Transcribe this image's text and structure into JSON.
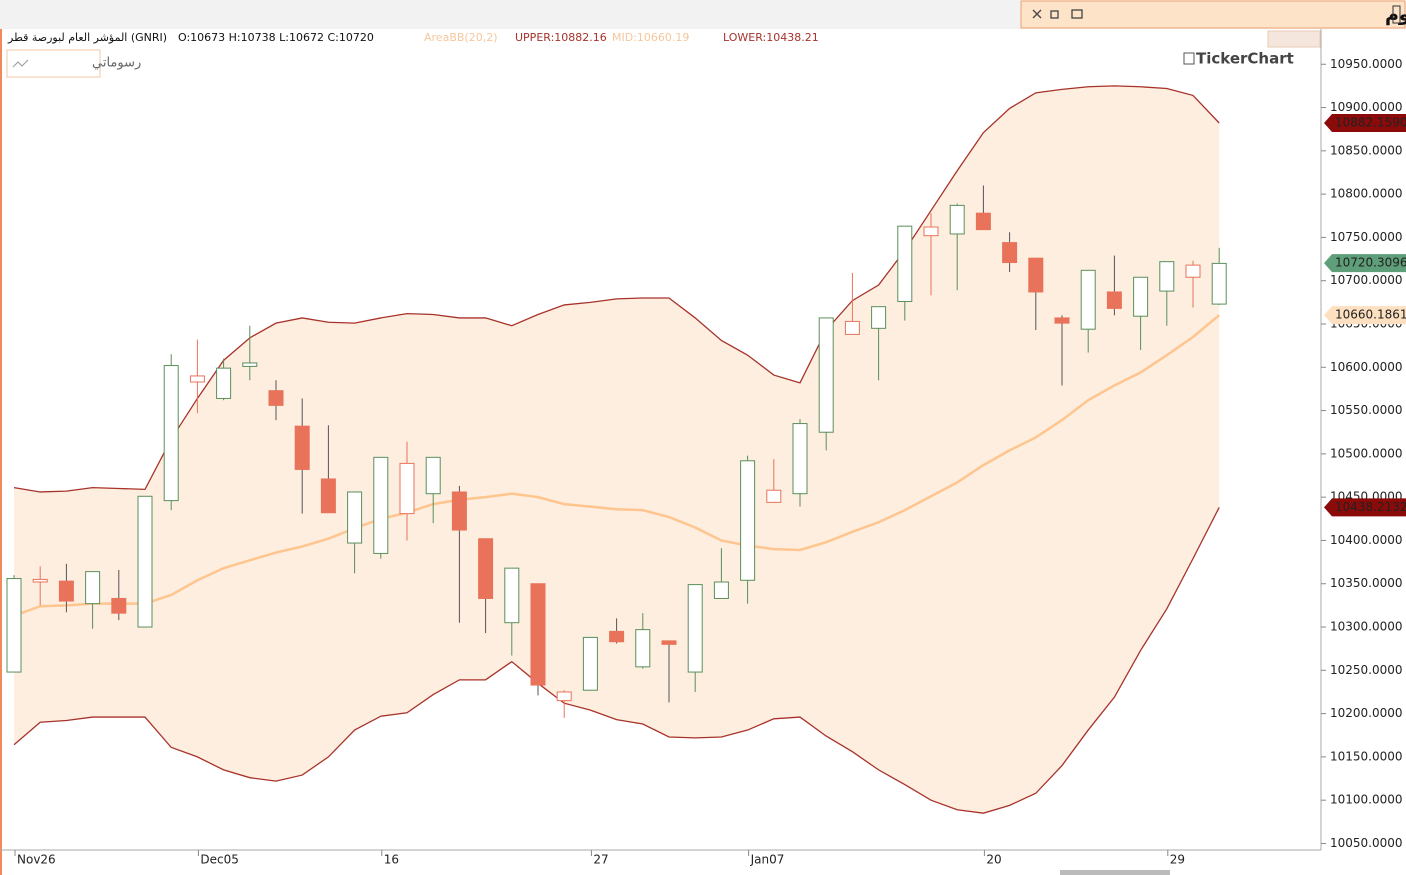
{
  "window": {
    "title": "المؤشر العام لبورصة قطر - يوم",
    "drawings_button": "رسوماتي",
    "logo": "TickerChart"
  },
  "chart_data": {
    "type": "candlestick",
    "instrument": "المؤشر العام لبورصة قطر (GNRI)",
    "ohlc_label": "O:10673 H:10738 L:10672 C:10720",
    "indicator": "AreaBB(20,2)",
    "indicator_color": "#f5c79c",
    "categories": [
      "Nov26",
      null,
      null,
      null,
      null,
      null,
      null,
      "Dec05",
      null,
      null,
      null,
      null,
      null,
      null,
      "16",
      null,
      null,
      null,
      null,
      null,
      null,
      null,
      "27",
      null,
      null,
      null,
      null,
      null,
      "Jan07",
      null,
      null,
      null,
      null,
      null,
      null,
      null,
      null,
      "20",
      null,
      null,
      null,
      null,
      null,
      null,
      "29",
      null,
      null
    ],
    "open": [
      10248,
      10352,
      10353,
      10327,
      10333,
      10300,
      10446,
      10583,
      10564,
      10601,
      10573,
      10532,
      10471,
      10397,
      10385,
      10431,
      10454,
      10456,
      10402,
      10305,
      10350,
      10215,
      10227,
      10295,
      10254,
      10284,
      10248,
      10333,
      10354,
      10444,
      10454,
      10525,
      10638,
      10645,
      10676,
      10752,
      10754,
      10778,
      10744,
      10726,
      10657,
      10644,
      10687,
      10659,
      10688,
      10704,
      10673
    ],
    "high": [
      10360,
      10370,
      10373,
      10364,
      10366,
      10451,
      10615,
      10632,
      10610,
      10648,
      10585,
      10564,
      10533,
      10456,
      10496,
      10514,
      10496,
      10463,
      10402,
      10368,
      10350,
      10227,
      10288,
      10310,
      10316,
      10284,
      10349,
      10391,
      10498,
      10494,
      10540,
      10657,
      10709,
      10670,
      10763,
      10778,
      10789,
      10810,
      10756,
      10726,
      10660,
      10712,
      10729,
      10704,
      10722,
      10723,
      10738
    ],
    "low": [
      10248,
      10325,
      10317,
      10298,
      10308,
      10300,
      10435,
      10547,
      10562,
      10585,
      10539,
      10431,
      10432,
      10362,
      10379,
      10400,
      10420,
      10305,
      10293,
      10267,
      10221,
      10195,
      10227,
      10281,
      10252,
      10213,
      10225,
      10333,
      10327,
      10444,
      10439,
      10504,
      10638,
      10585,
      10654,
      10683,
      10689,
      10759,
      10710,
      10643,
      10579,
      10617,
      10660,
      10620,
      10648,
      10669,
      10672
    ],
    "close": [
      10356,
      10355,
      10330,
      10364,
      10316,
      10451,
      10602,
      10590,
      10599,
      10605,
      10556,
      10482,
      10432,
      10456,
      10496,
      10489,
      10496,
      10412,
      10333,
      10368,
      10233,
      10225,
      10288,
      10283,
      10297,
      10280,
      10349,
      10352,
      10492,
      10458,
      10535,
      10657,
      10653,
      10670,
      10763,
      10762,
      10787,
      10759,
      10721,
      10687,
      10651,
      10712,
      10668,
      10704,
      10722,
      10718,
      10720
    ],
    "up_color": "#5b8f5b",
    "down_color": "#e8735a",
    "band_fill": "#fdeee0",
    "series": [
      {
        "name": "UPPER:10882.16",
        "color": "#a8322a",
        "values": [
          10461,
          10456,
          10457,
          10461,
          10460,
          10459,
          10517,
          10564,
          10608,
          10634,
          10651,
          10657,
          10652,
          10651,
          10657,
          10662,
          10661,
          10657,
          10657,
          10648,
          10661,
          10672,
          10675,
          10679,
          10680,
          10680,
          10657,
          10631,
          10614,
          10591,
          10582,
          10643,
          10677,
          10695,
          10735,
          10781,
          10827,
          10871,
          10899,
          10917,
          10921,
          10924,
          10925,
          10924,
          10922,
          10914,
          10882.16
        ]
      },
      {
        "name": "MID:10660.19",
        "color": "#ffc58f",
        "values": [
          10313,
          10324,
          10325,
          10327,
          10327,
          10327,
          10337,
          10354,
          10368,
          10377,
          10386,
          10393,
          10402,
          10414,
          10425,
          10432,
          10442,
          10447,
          10450,
          10454,
          10450,
          10442,
          10439,
          10436,
          10435,
          10427,
          10415,
          10400,
          10394,
          10390,
          10389,
          10398,
          10410,
          10421,
          10435,
          10451,
          10467,
          10487,
          10504,
          10519,
          10539,
          10562,
          10579,
          10594,
          10614,
          10635,
          10660.19
        ]
      },
      {
        "name": "LOWER:10438.21",
        "color": "#a8322a",
        "values": [
          10164,
          10190,
          10192,
          10196,
          10196,
          10196,
          10161,
          10150,
          10135,
          10126,
          10122,
          10129,
          10150,
          10181,
          10197,
          10201,
          10222,
          10239,
          10239,
          10260,
          10235,
          10212,
          10204,
          10193,
          10188,
          10173,
          10172,
          10173,
          10181,
          10194,
          10196,
          10174,
          10156,
          10135,
          10118,
          10100,
          10089,
          10085,
          10094,
          10108,
          10140,
          10181,
          10219,
          10273,
          10321,
          10379,
          10438.21
        ]
      }
    ],
    "price_tags": [
      {
        "value": 10882.159,
        "label": "10882.1590",
        "color": "#8b0a0a"
      },
      {
        "value": 10720.3096,
        "label": "10720.3096",
        "color": "#5e9e78"
      },
      {
        "value": 10660.1861,
        "label": "10660.1861",
        "color": "#fde0c0"
      },
      {
        "value": 10438.2132,
        "label": "10438.2132",
        "color": "#8b0a0a"
      }
    ],
    "ylim": [
      10039,
      10963
    ],
    "yticks": [
      {
        "value": 10050,
        "label": "10050.0000"
      },
      {
        "value": 10100,
        "label": "10100.0000"
      },
      {
        "value": 10150,
        "label": "10150.0000"
      },
      {
        "value": 10200,
        "label": "10200.0000"
      },
      {
        "value": 10250,
        "label": "10250.0000"
      },
      {
        "value": 10300,
        "label": "10300.0000"
      },
      {
        "value": 10350,
        "label": "10350.0000"
      },
      {
        "value": 10400,
        "label": "10400.0000"
      },
      {
        "value": 10450,
        "label": "10450.0000"
      },
      {
        "value": 10500,
        "label": "10500.0000"
      },
      {
        "value": 10550,
        "label": "10550.0000"
      },
      {
        "value": 10600,
        "label": "10600.0000"
      },
      {
        "value": 10650,
        "label": "10650.0000"
      },
      {
        "value": 10700,
        "label": "10700.0000"
      },
      {
        "value": 10750,
        "label": "10750.0000"
      },
      {
        "value": 10800,
        "label": "10800.0000"
      },
      {
        "value": 10850,
        "label": "10850.0000"
      },
      {
        "value": 10900,
        "label": "10900.0000"
      },
      {
        "value": 10950,
        "label": "10950.0000"
      }
    ],
    "grid": false
  }
}
